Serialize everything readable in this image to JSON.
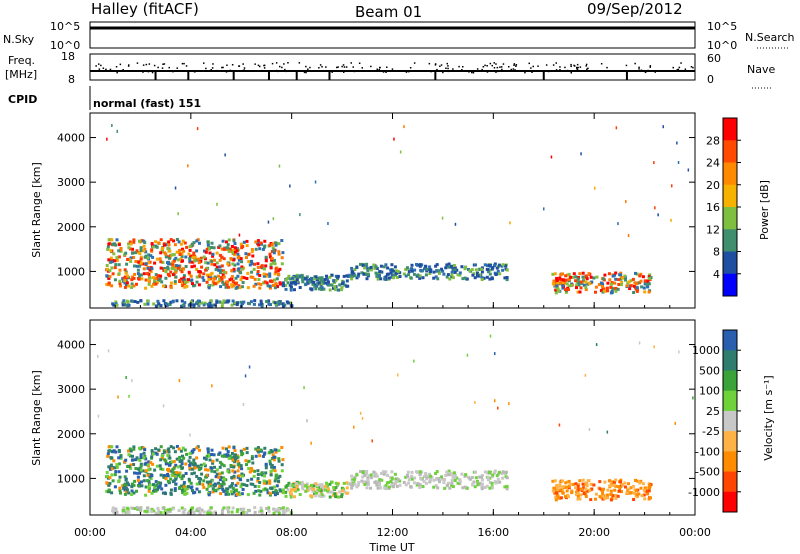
{
  "header": {
    "station": "Halley (fitACF)",
    "beam": "Beam 01",
    "date": "09/Sep/2012"
  },
  "nsky_panel": {
    "left_label": "N.Sky",
    "left_ticks": [
      "10^5",
      "10^0"
    ],
    "right_label": "N.Search",
    "right_ticks": [
      "10^5",
      "10^0"
    ]
  },
  "freq_panel": {
    "left_label_top": "Freq.",
    "left_label_bottom": "[MHz]",
    "left_ticks": [
      "18",
      "8"
    ],
    "right_label": "Nave",
    "right_ticks": [
      "60",
      "0"
    ]
  },
  "cpid_panel": {
    "label": "CPID",
    "value": "normal (fast) 151"
  },
  "chart_data": [
    {
      "type": "heatmap",
      "name": "power",
      "ylabel": "Slant Range [km]",
      "xlabel": "Time UT",
      "x_ticks": [
        "00:00",
        "04:00",
        "08:00",
        "12:00",
        "16:00",
        "20:00",
        "00:00"
      ],
      "y_ticks": [
        "1000",
        "2000",
        "3000",
        "4000"
      ],
      "xlim_hours": [
        0,
        24
      ],
      "ylim_km": [
        180,
        4550
      ],
      "colorbar": {
        "label": "Power [dB]",
        "ticks": [
          "28",
          "24",
          "20",
          "16",
          "12",
          "8",
          "4"
        ],
        "colors": [
          "#ff0000",
          "#ff4a00",
          "#ff8a00",
          "#f7b200",
          "#7fbf3f",
          "#3f8f6f",
          "#1f4fa0",
          "#0000ff"
        ]
      },
      "blobs": [
        {
          "t0": 0.6,
          "t1": 7.6,
          "r0": 650,
          "r1": 1750,
          "intensity": "high"
        },
        {
          "t0": 7.6,
          "t1": 10.2,
          "r0": 600,
          "r1": 950,
          "intensity": "low"
        },
        {
          "t0": 10.2,
          "t1": 16.5,
          "r0": 850,
          "r1": 1200,
          "intensity": "low"
        },
        {
          "t0": 18.3,
          "t1": 22.2,
          "r0": 550,
          "r1": 1000,
          "intensity": "high"
        },
        {
          "t0": 0.8,
          "t1": 8.0,
          "r0": 250,
          "r1": 380,
          "intensity": "low"
        }
      ]
    },
    {
      "type": "heatmap",
      "name": "velocity",
      "ylabel": "Slant Range [km]",
      "xlabel": "Time UT",
      "x_ticks": [
        "00:00",
        "04:00",
        "08:00",
        "12:00",
        "16:00",
        "20:00",
        "00:00"
      ],
      "y_ticks": [
        "1000",
        "2000",
        "3000",
        "4000"
      ],
      "xlim_hours": [
        0,
        24
      ],
      "ylim_km": [
        180,
        4550
      ],
      "colorbar": {
        "label": "Velocity [m s⁻¹]",
        "ticks": [
          "1000",
          "500",
          "100",
          "25",
          "-25",
          "-100",
          "-500",
          "-1000"
        ],
        "colors": [
          "#2a5fb0",
          "#2e7d6e",
          "#3aa33a",
          "#6fd23a",
          "#c8c8c8",
          "#ffb347",
          "#ff8c00",
          "#ff4500",
          "#ff0000"
        ]
      },
      "blobs": [
        {
          "t0": 0.6,
          "t1": 7.6,
          "r0": 650,
          "r1": 1750,
          "intensity": "green"
        },
        {
          "t0": 7.6,
          "t1": 10.2,
          "r0": 600,
          "r1": 950,
          "intensity": "lightgreen"
        },
        {
          "t0": 10.2,
          "t1": 16.5,
          "r0": 800,
          "r1": 1200,
          "intensity": "grey"
        },
        {
          "t0": 18.3,
          "t1": 22.2,
          "r0": 550,
          "r1": 1000,
          "intensity": "orange"
        },
        {
          "t0": 0.8,
          "t1": 8.0,
          "r0": 250,
          "r1": 380,
          "intensity": "grey"
        }
      ]
    }
  ]
}
